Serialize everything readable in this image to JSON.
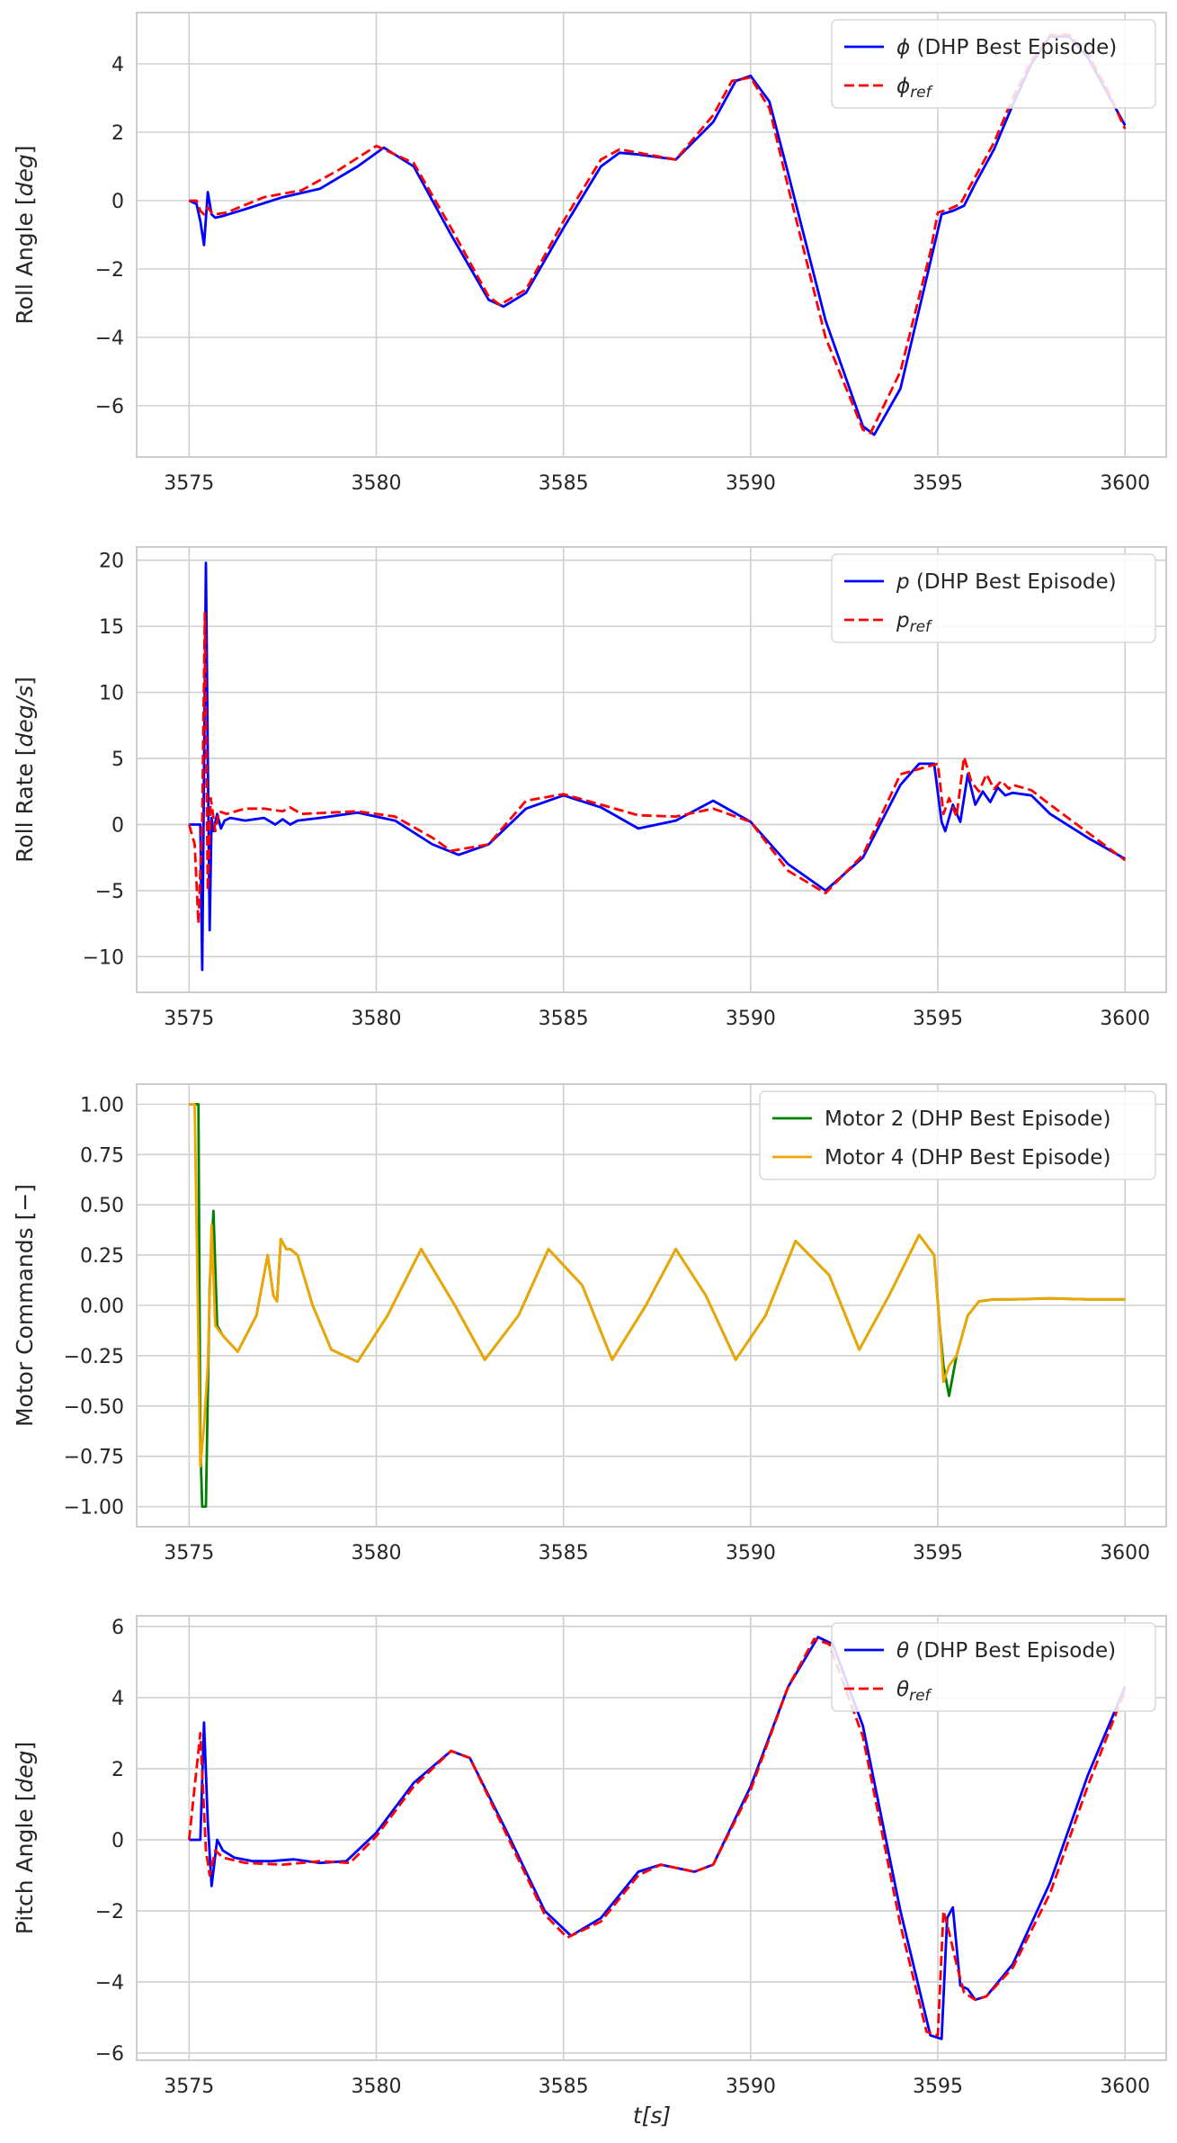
{
  "figure": {
    "xlabel": "t[s]",
    "grid_color": "#cfcfcf",
    "frame_color": "#cccccc"
  },
  "chart_data": [
    {
      "type": "line",
      "title": "",
      "ylabel": "Roll Angle [deg]",
      "xlim": [
        3573.6,
        3601.1
      ],
      "ylim": [
        -7.5,
        5.5
      ],
      "xticks": [
        3575,
        3580,
        3585,
        3590,
        3595,
        3600
      ],
      "xtick_labels": [
        "3575",
        "3580",
        "3585",
        "3590",
        "3595",
        "3600"
      ],
      "yticks": [
        4,
        2,
        0,
        -2,
        -4,
        -6
      ],
      "ytick_labels": [
        "4",
        "2",
        "0",
        "−2",
        "−4",
        "−6"
      ],
      "legend_position": "top-right",
      "grid": true,
      "series": [
        {
          "name": "ϕ (DHP Best Episode)",
          "color": "#0000ff",
          "style": "solid",
          "x": [
            3575,
            3575.2,
            3575.3,
            3575.4,
            3575.5,
            3575.6,
            3575.7,
            3575.9,
            3576.5,
            3577.5,
            3578.5,
            3579.5,
            3580.2,
            3581,
            3582,
            3583,
            3583.4,
            3584,
            3585,
            3586,
            3586.5,
            3587,
            3588,
            3589,
            3589.6,
            3590,
            3590.5,
            3591,
            3592,
            3593,
            3593.3,
            3594,
            3594.8,
            3595.1,
            3595.4,
            3595.7,
            3596,
            3596.5,
            3597,
            3597.5,
            3598,
            3598.5,
            3599,
            3599.5,
            3600
          ],
          "y": [
            0.0,
            -0.1,
            -0.6,
            -1.3,
            0.25,
            -0.4,
            -0.5,
            -0.45,
            -0.25,
            0.1,
            0.35,
            1.0,
            1.55,
            1.0,
            -1.0,
            -2.9,
            -3.1,
            -2.7,
            -0.8,
            1.0,
            1.4,
            1.35,
            1.2,
            2.3,
            3.5,
            3.65,
            2.9,
            0.8,
            -3.5,
            -6.6,
            -6.85,
            -5.5,
            -1.8,
            -0.4,
            -0.3,
            -0.15,
            0.5,
            1.5,
            2.8,
            4.0,
            4.8,
            4.8,
            4.2,
            3.2,
            2.2
          ]
        },
        {
          "name": "ϕref",
          "color": "#ff0000",
          "style": "dashed",
          "x": [
            3575,
            3575.2,
            3575.3,
            3575.4,
            3575.5,
            3575.6,
            3575.7,
            3576,
            3577,
            3578,
            3579,
            3580,
            3581,
            3582,
            3583,
            3583.3,
            3584,
            3585,
            3586,
            3586.5,
            3587,
            3588,
            3589,
            3589.5,
            3590,
            3590.5,
            3591,
            3592,
            3593,
            3593.2,
            3594,
            3594.8,
            3595,
            3595.3,
            3595.6,
            3596,
            3596.5,
            3597,
            3597.5,
            3598,
            3598.5,
            3599,
            3599.5,
            3600
          ],
          "y": [
            0.0,
            0.0,
            -0.3,
            -0.4,
            -0.2,
            -0.35,
            -0.4,
            -0.35,
            0.1,
            0.3,
            0.9,
            1.6,
            1.1,
            -0.8,
            -2.8,
            -3.05,
            -2.6,
            -0.6,
            1.2,
            1.5,
            1.4,
            1.2,
            2.5,
            3.5,
            3.6,
            2.7,
            0.4,
            -4.0,
            -6.7,
            -6.8,
            -5.0,
            -1.5,
            -0.35,
            -0.25,
            -0.1,
            0.7,
            1.7,
            3.0,
            4.1,
            4.85,
            4.85,
            4.3,
            3.3,
            2.1
          ]
        }
      ]
    },
    {
      "type": "line",
      "title": "",
      "ylabel": "Roll Rate [deg/s]",
      "xlim": [
        3573.6,
        3601.1
      ],
      "ylim": [
        -12.7,
        21.0
      ],
      "xticks": [
        3575,
        3580,
        3585,
        3590,
        3595,
        3600
      ],
      "xtick_labels": [
        "3575",
        "3580",
        "3585",
        "3590",
        "3595",
        "3600"
      ],
      "yticks": [
        20,
        15,
        10,
        5,
        0,
        -5,
        -10
      ],
      "ytick_labels": [
        "20",
        "15",
        "10",
        "5",
        "0",
        "−5",
        "−10"
      ],
      "legend_position": "top-right",
      "grid": true,
      "series": [
        {
          "name": "p (DHP Best Episode)",
          "color": "#0000ff",
          "style": "solid",
          "x": [
            3575,
            3575.2,
            3575.3,
            3575.35,
            3575.45,
            3575.5,
            3575.55,
            3575.6,
            3575.65,
            3575.75,
            3575.85,
            3575.95,
            3576.1,
            3576.5,
            3577,
            3577.3,
            3577.5,
            3577.7,
            3577.9,
            3578.5,
            3579.5,
            3580.5,
            3581.5,
            3582.2,
            3583,
            3584,
            3585,
            3586,
            3587,
            3588,
            3589,
            3590,
            3591,
            3592,
            3593,
            3594,
            3594.5,
            3594.9,
            3595.1,
            3595.2,
            3595.4,
            3595.6,
            3595.8,
            3596,
            3596.2,
            3596.4,
            3596.6,
            3596.8,
            3597,
            3597.5,
            3598,
            3599,
            3600
          ],
          "y": [
            0,
            0,
            0,
            -11,
            19.8,
            5,
            -8,
            0.5,
            -0.5,
            0.8,
            -0.3,
            0.3,
            0.5,
            0.3,
            0.5,
            0,
            0.4,
            0,
            0.3,
            0.5,
            0.9,
            0.3,
            -1.5,
            -2.3,
            -1.5,
            1.2,
            2.2,
            1.3,
            -0.3,
            0.3,
            1.8,
            0.2,
            -3.0,
            -5.0,
            -2.5,
            3.0,
            4.6,
            4.6,
            0.2,
            -0.5,
            1.5,
            0.2,
            3.8,
            1.5,
            2.5,
            1.7,
            2.8,
            2.2,
            2.4,
            2.2,
            0.8,
            -1.0,
            -2.6
          ]
        },
        {
          "name": "pref",
          "color": "#ff0000",
          "style": "dashed",
          "x": [
            3575,
            3575.15,
            3575.25,
            3575.35,
            3575.42,
            3575.5,
            3575.58,
            3575.7,
            3575.8,
            3576,
            3576.5,
            3577,
            3577.5,
            3577.7,
            3578,
            3579.5,
            3580.5,
            3581.5,
            3582,
            3583,
            3584,
            3585,
            3586,
            3587,
            3588,
            3589,
            3590,
            3591,
            3592,
            3593,
            3594,
            3595,
            3595.15,
            3595.3,
            3595.5,
            3595.7,
            3595.9,
            3596.1,
            3596.3,
            3596.5,
            3596.7,
            3596.9,
            3597,
            3597.5,
            3598,
            3599,
            3600
          ],
          "y": [
            0,
            -1.5,
            -7.5,
            0.5,
            16,
            -5,
            2,
            -0.5,
            1,
            0.8,
            1.2,
            1.2,
            1.0,
            1.3,
            0.8,
            1.0,
            0.6,
            -1.0,
            -2.0,
            -1.5,
            1.8,
            2.3,
            1.5,
            0.7,
            0.6,
            1.2,
            0.2,
            -3.5,
            -5.2,
            -2.3,
            3.8,
            4.6,
            0.8,
            2.0,
            0.6,
            5.1,
            3.2,
            2.5,
            3.8,
            2.7,
            3.3,
            2.7,
            3.0,
            2.6,
            1.5,
            -0.6,
            -2.7
          ]
        }
      ]
    },
    {
      "type": "line",
      "title": "",
      "ylabel": "Motor Commands [−]",
      "xlim": [
        3573.6,
        3601.1
      ],
      "ylim": [
        -1.1,
        1.1
      ],
      "xticks": [
        3575,
        3580,
        3585,
        3590,
        3595,
        3600
      ],
      "xtick_labels": [
        "3575",
        "3580",
        "3585",
        "3590",
        "3595",
        "3600"
      ],
      "yticks": [
        1.0,
        0.75,
        0.5,
        0.25,
        0.0,
        -0.25,
        -0.5,
        -0.75,
        -1.0
      ],
      "ytick_labels": [
        "1.00",
        "0.75",
        "0.50",
        "0.25",
        "0.00",
        "−0.25",
        "−0.50",
        "−0.75",
        "−1.00"
      ],
      "legend_position": "top-right",
      "grid": true,
      "series": [
        {
          "name": "Motor 2 (DHP Best Episode)",
          "color": "#008000",
          "style": "solid",
          "x": [
            3575,
            3575.25,
            3575.3,
            3575.35,
            3575.45,
            3575.55,
            3575.65,
            3575.75,
            3575.9,
            3576.3,
            3576.8,
            3577.1,
            3577.25,
            3577.35,
            3577.45,
            3577.6,
            3577.7,
            3577.9,
            3578.3,
            3578.8,
            3579.5,
            3580.3,
            3581.2,
            3582.1,
            3582.9,
            3583.8,
            3584.6,
            3585.5,
            3586.3,
            3587.2,
            3588,
            3588.8,
            3589.6,
            3590.4,
            3591.2,
            3592.1,
            3592.9,
            3593.7,
            3594.5,
            3594.9,
            3595.05,
            3595.15,
            3595.3,
            3595.5,
            3595.8,
            3596.1,
            3596.5,
            3597,
            3598,
            3599,
            3600
          ],
          "y": [
            1.0,
            1.0,
            -0.7,
            -1.0,
            -1.0,
            0.1,
            0.47,
            -0.1,
            -0.15,
            -0.23,
            -0.05,
            0.25,
            0.05,
            0.02,
            0.33,
            0.28,
            0.28,
            0.25,
            0.0,
            -0.22,
            -0.28,
            -0.05,
            0.28,
            0.0,
            -0.27,
            -0.05,
            0.28,
            0.1,
            -0.27,
            0.0,
            0.28,
            0.05,
            -0.27,
            -0.05,
            0.32,
            0.15,
            -0.22,
            0.05,
            0.35,
            0.25,
            -0.1,
            -0.3,
            -0.45,
            -0.25,
            -0.05,
            0.02,
            0.03,
            0.03,
            0.035,
            0.03,
            0.03
          ]
        },
        {
          "name": "Motor 4 (DHP Best Episode)",
          "color": "#f0a500",
          "style": "solid",
          "x": [
            3575,
            3575.15,
            3575.3,
            3575.4,
            3575.5,
            3575.6,
            3575.7,
            3575.9,
            3576.3,
            3576.8,
            3577.1,
            3577.25,
            3577.35,
            3577.45,
            3577.6,
            3577.7,
            3577.9,
            3578.3,
            3578.8,
            3579.5,
            3580.3,
            3581.2,
            3582.1,
            3582.9,
            3583.8,
            3584.6,
            3585.5,
            3586.3,
            3587.2,
            3588,
            3588.8,
            3589.6,
            3590.4,
            3591.2,
            3592.1,
            3592.9,
            3593.7,
            3594.5,
            3594.9,
            3595.05,
            3595.15,
            3595.3,
            3595.5,
            3595.8,
            3596.1,
            3596.5,
            3597,
            3598,
            3599,
            3600
          ],
          "y": [
            1.0,
            1.0,
            -0.8,
            -0.6,
            -0.3,
            0.4,
            -0.1,
            -0.15,
            -0.23,
            -0.05,
            0.25,
            0.05,
            0.02,
            0.33,
            0.28,
            0.28,
            0.25,
            0.0,
            -0.22,
            -0.28,
            -0.05,
            0.28,
            0.0,
            -0.27,
            -0.05,
            0.28,
            0.1,
            -0.27,
            0.0,
            0.28,
            0.05,
            -0.27,
            -0.05,
            0.32,
            0.15,
            -0.22,
            0.05,
            0.35,
            0.25,
            -0.1,
            -0.38,
            -0.3,
            -0.25,
            -0.05,
            0.02,
            0.03,
            0.03,
            0.035,
            0.03,
            0.03
          ]
        }
      ]
    },
    {
      "type": "line",
      "title": "",
      "ylabel": "Pitch Angle [deg]",
      "xlim": [
        3573.6,
        3601.1
      ],
      "ylim": [
        -6.2,
        6.3
      ],
      "xticks": [
        3575,
        3580,
        3585,
        3590,
        3595,
        3600
      ],
      "xtick_labels": [
        "3575",
        "3580",
        "3585",
        "3590",
        "3595",
        "3600"
      ],
      "yticks": [
        6,
        4,
        2,
        0,
        -2,
        -4,
        -6
      ],
      "ytick_labels": [
        "6",
        "4",
        "2",
        "0",
        "−2",
        "−4",
        "−6"
      ],
      "legend_position": "top-right",
      "grid": true,
      "series": [
        {
          "name": "θ (DHP Best Episode)",
          "color": "#0000ff",
          "style": "solid",
          "x": [
            3575,
            3575.2,
            3575.3,
            3575.4,
            3575.5,
            3575.6,
            3575.75,
            3575.9,
            3576.2,
            3576.7,
            3577.2,
            3577.8,
            3578.5,
            3579.2,
            3580,
            3581,
            3582,
            3582.5,
            3583.5,
            3584.5,
            3585.2,
            3586,
            3587,
            3587.6,
            3588.5,
            3589,
            3590,
            3591,
            3591.8,
            3592.2,
            3593,
            3594,
            3594.8,
            3595.1,
            3595.25,
            3595.4,
            3595.6,
            3595.8,
            3596,
            3596.3,
            3597,
            3598,
            3599,
            3600
          ],
          "y": [
            0,
            0,
            0,
            3.3,
            0.5,
            -1.3,
            0,
            -0.3,
            -0.5,
            -0.6,
            -0.6,
            -0.55,
            -0.65,
            -0.6,
            0.2,
            1.6,
            2.5,
            2.3,
            0.2,
            -2.0,
            -2.7,
            -2.2,
            -0.9,
            -0.7,
            -0.9,
            -0.7,
            1.5,
            4.3,
            5.7,
            5.5,
            3.2,
            -2.0,
            -5.5,
            -5.6,
            -2.2,
            -1.9,
            -4.1,
            -4.2,
            -4.5,
            -4.4,
            -3.5,
            -1.2,
            1.8,
            4.3
          ]
        },
        {
          "name": "θref",
          "color": "#ff0000",
          "style": "dashed",
          "x": [
            3575,
            3575.15,
            3575.3,
            3575.45,
            3575.55,
            3575.7,
            3575.9,
            3576.5,
            3577.5,
            3578.5,
            3579.3,
            3580,
            3581,
            3582,
            3582.5,
            3583.5,
            3584.5,
            3585.1,
            3586,
            3587,
            3587.6,
            3588.5,
            3589,
            3590,
            3591,
            3591.7,
            3592.1,
            3593,
            3594,
            3594.7,
            3595,
            3595.15,
            3595.3,
            3595.5,
            3595.7,
            3596,
            3596.3,
            3597,
            3598,
            3599,
            3600
          ],
          "y": [
            0,
            1.5,
            3.0,
            -0.3,
            -1.0,
            -0.3,
            -0.5,
            -0.65,
            -0.7,
            -0.6,
            -0.65,
            0.1,
            1.5,
            2.5,
            2.3,
            0.1,
            -2.1,
            -2.75,
            -2.3,
            -1.0,
            -0.7,
            -0.9,
            -0.7,
            1.4,
            4.3,
            5.65,
            5.5,
            2.9,
            -2.4,
            -5.4,
            -5.5,
            -2.0,
            -2.6,
            -3.5,
            -4.3,
            -4.5,
            -4.4,
            -3.6,
            -1.5,
            1.5,
            4.2
          ]
        }
      ]
    }
  ]
}
